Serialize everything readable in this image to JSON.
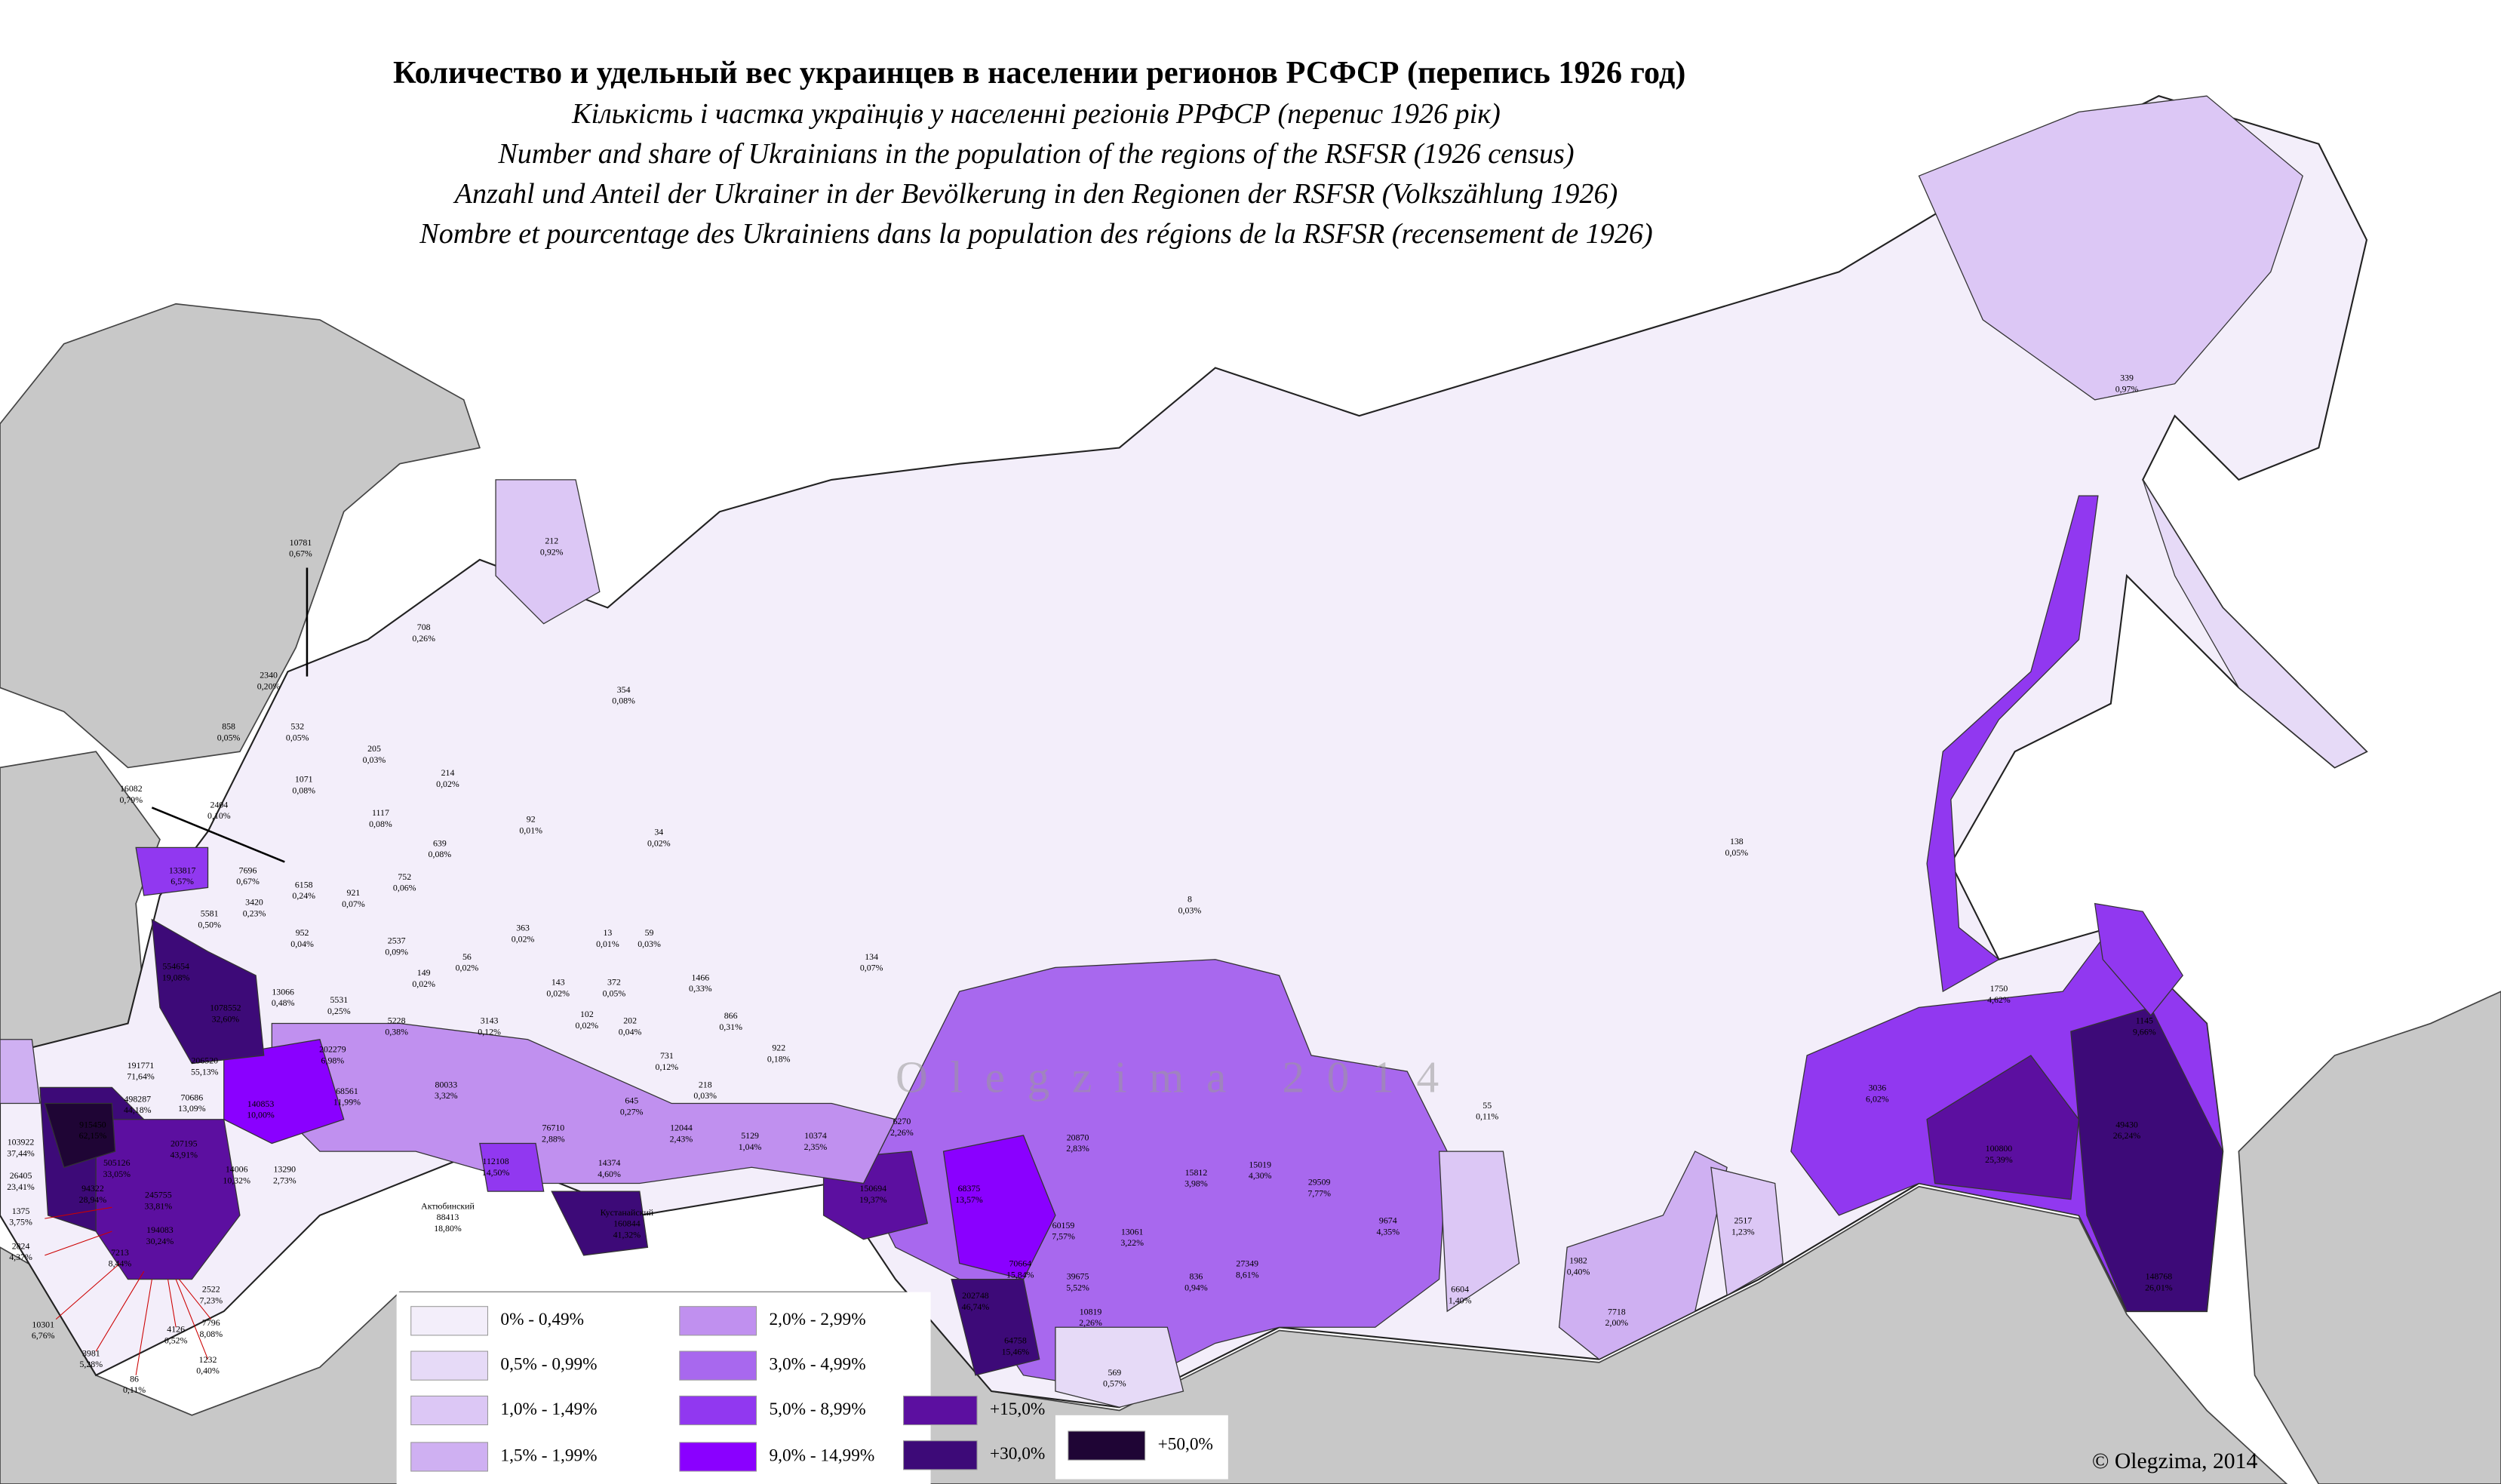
{
  "title": "Количество и удельный вес украинцев в населении регионов РСФСР (перепись 1926 год)",
  "subtitles": [
    "Кількість і частка українців у населенні регіонів РРФСР (перепис 1926 рік)",
    "Number and share of Ukrainians in the population of the regions of the RSFSR (1926 census)",
    "Anzahl und Anteil der Ukrainer in der Bevölkerung in den Regionen der RSFSR (Volkszählung 1926)",
    "Nombre et pourcentage des Ukrainiens dans la population des régions de la RSFSR (recensement de 1926)"
  ],
  "legend": [
    {
      "label": "0% - 0,49%",
      "color": "#f3eefa"
    },
    {
      "label": "0,5% - 0,99%",
      "color": "#e6daf7"
    },
    {
      "label": "1,0% - 1,49%",
      "color": "#dcc7f5"
    },
    {
      "label": "1,5% - 1,99%",
      "color": "#cfb0f2"
    },
    {
      "label": "2,0% - 2,99%",
      "color": "#c090ef"
    },
    {
      "label": "3,0% - 4,99%",
      "color": "#a868ee"
    },
    {
      "label": "5,0% - 8,99%",
      "color": "#9138f0"
    },
    {
      "label": "9,0% - 14,99%",
      "color": "#8a00ff"
    },
    {
      "label": "+15,0%",
      "color": "#5c0fa0"
    },
    {
      "label": "+30,0%",
      "color": "#3d0a78"
    },
    {
      "label": "+50,0%",
      "color": "#1f0535"
    }
  ],
  "watermark": "Olegzima 2014",
  "copyright": "© Olegzima, 2014",
  "regions": [
    {
      "value": 10781,
      "share": "0,67%"
    },
    {
      "value": 212,
      "share": "0,92%"
    },
    {
      "value": 708,
      "share": "0,26%"
    },
    {
      "value": 2340,
      "share": "0,20%"
    },
    {
      "value": 354,
      "share": "0,08%"
    },
    {
      "value": 858,
      "share": "0,05%"
    },
    {
      "value": 532,
      "share": "0,05%"
    },
    {
      "value": 205,
      "share": "0,03%"
    },
    {
      "value": 1071,
      "share": "0,08%"
    },
    {
      "value": 214,
      "share": "0,02%"
    },
    {
      "value": 16082,
      "share": "0,79%"
    },
    {
      "value": 2404,
      "share": "0,10%"
    },
    {
      "value": 1117,
      "share": "0,08%"
    },
    {
      "value": 92,
      "share": "0,01%"
    },
    {
      "value": 34,
      "share": "0,02%"
    },
    {
      "value": 639,
      "share": "0,08%"
    },
    {
      "value": 138,
      "share": "0,05%"
    },
    {
      "value": 133817,
      "share": "6,57%"
    },
    {
      "value": 7696,
      "share": "0,67%"
    },
    {
      "value": 752,
      "share": "0,06%"
    },
    {
      "value": 3420,
      "share": "0,23%"
    },
    {
      "value": 6158,
      "share": "0,24%"
    },
    {
      "value": 921,
      "share": "0,07%"
    },
    {
      "value": 8,
      "share": "0,03%"
    },
    {
      "value": 5581,
      "share": "0,50%"
    },
    {
      "value": 363,
      "share": "0,02%"
    },
    {
      "value": 13,
      "share": "0,01%"
    },
    {
      "value": 59,
      "share": "0,03%"
    },
    {
      "value": 952,
      "share": "0,04%"
    },
    {
      "value": 2537,
      "share": "0,09%"
    },
    {
      "value": 134,
      "share": "0,07%"
    },
    {
      "value": 554654,
      "share": "19,08%"
    },
    {
      "value": 56,
      "share": "0,02%"
    },
    {
      "value": 149,
      "share": "0,02%"
    },
    {
      "value": 1466,
      "share": "0,33%"
    },
    {
      "value": 143,
      "share": "0,02%"
    },
    {
      "value": 372,
      "share": "0,05%"
    },
    {
      "value": 13066,
      "share": "0,48%"
    },
    {
      "value": 5531,
      "share": "0,25%"
    },
    {
      "value": 1078552,
      "share": "32,60%"
    },
    {
      "value": 866,
      "share": "0,31%"
    },
    {
      "value": 102,
      "share": "0,02%"
    },
    {
      "value": 202,
      "share": "0,04%"
    },
    {
      "value": 5228,
      "share": "0,38%"
    },
    {
      "value": 3143,
      "share": "0,12%"
    },
    {
      "value": 922,
      "share": "0,18%"
    },
    {
      "value": 1750,
      "share": "4,62%"
    },
    {
      "value": 1145,
      "share": "9,66%"
    },
    {
      "value": 191771,
      "share": "71,64%"
    },
    {
      "value": 206520,
      "share": "55,13%"
    },
    {
      "value": 202279,
      "share": "6,98%"
    },
    {
      "value": 731,
      "share": "0,12%"
    },
    {
      "value": 218,
      "share": "0,03%"
    },
    {
      "value": 645,
      "share": "0,27%"
    },
    {
      "value": 498287,
      "share": "44,18%"
    },
    {
      "value": 70686,
      "share": "13,09%"
    },
    {
      "value": 140853,
      "share": "10,00%"
    },
    {
      "value": 68561,
      "share": "11,99%"
    },
    {
      "value": 80033,
      "share": "3,32%"
    },
    {
      "value": 76710,
      "share": "2,88%"
    },
    {
      "value": 12044,
      "share": "2,43%"
    },
    {
      "value": 5129,
      "share": "1,04%"
    },
    {
      "value": 10374,
      "share": "2,35%"
    },
    {
      "value": 6270,
      "share": "2,26%"
    },
    {
      "value": 20870,
      "share": "2,83%"
    },
    {
      "value": 55,
      "share": "0,11%"
    },
    {
      "value": 3036,
      "share": "6,02%"
    },
    {
      "value": 49430,
      "share": "26,24%"
    },
    {
      "value": 100800,
      "share": "25,39%"
    },
    {
      "value": 915450,
      "share": "62,15%"
    },
    {
      "value": 103922,
      "share": "37,44%"
    },
    {
      "value": 505126,
      "share": "33,05%"
    },
    {
      "value": 207195,
      "share": "43,91%"
    },
    {
      "value": 14374,
      "share": "4,60%"
    },
    {
      "value": 112108,
      "share": "14,50%"
    },
    {
      "value": 150694,
      "share": "19,37%"
    },
    {
      "value": 68375,
      "share": "13,57%"
    },
    {
      "value": 15812,
      "share": "3,98%"
    },
    {
      "value": 15019,
      "share": "4,30%"
    },
    {
      "value": 29509,
      "share": "7,77%"
    },
    {
      "value": 26405,
      "share": "23,41%"
    },
    {
      "value": 94322,
      "share": "28,94%"
    },
    {
      "value": 245755,
      "share": "33,81%"
    },
    {
      "value": 14006,
      "share": "10,32%"
    },
    {
      "value": 13290,
      "share": "2,73%"
    },
    {
      "value": 1375,
      "share": "3,75%"
    },
    {
      "value": 9674,
      "share": "4,35%"
    },
    {
      "value": 2517,
      "share": "1,23%"
    },
    {
      "name": "Актюбинский",
      "value": 88413,
      "share": "18,80%"
    },
    {
      "name": "Кустанайский",
      "value": 160844,
      "share": "41,32%"
    },
    {
      "value": 194083,
      "share": "30,24%"
    },
    {
      "value": 2824,
      "share": "4,37%"
    },
    {
      "value": 60159,
      "share": "7,57%"
    },
    {
      "value": 70664,
      "share": "15,84%"
    },
    {
      "value": 13061,
      "share": "3,22%"
    },
    {
      "value": 27349,
      "share": "8,61%"
    },
    {
      "value": 39675,
      "share": "5,52%"
    },
    {
      "value": 836,
      "share": "0,94%"
    },
    {
      "value": 1982,
      "share": "0,40%"
    },
    {
      "value": 2522,
      "share": "7,23%"
    },
    {
      "value": 10819,
      "share": "2,26%"
    },
    {
      "value": 202748,
      "share": "46,74%"
    },
    {
      "value": 64758,
      "share": "15,46%"
    },
    {
      "value": 6604,
      "share": "1,40%"
    },
    {
      "value": 7718,
      "share": "2,00%"
    },
    {
      "value": 148768,
      "share": "26,01%"
    },
    {
      "value": 10301,
      "share": "6,76%"
    },
    {
      "value": 7796,
      "share": "8,08%"
    },
    {
      "value": 4126,
      "share": "0,52%"
    },
    {
      "value": 3981,
      "share": "5,28%"
    },
    {
      "value": 1232,
      "share": "0,40%"
    },
    {
      "value": 569,
      "share": "0,57%"
    },
    {
      "value": 86,
      "share": "0,11%"
    },
    {
      "value": 339,
      "share": "0,97%"
    },
    {
      "value": 7213,
      "share": "8,44%"
    }
  ]
}
